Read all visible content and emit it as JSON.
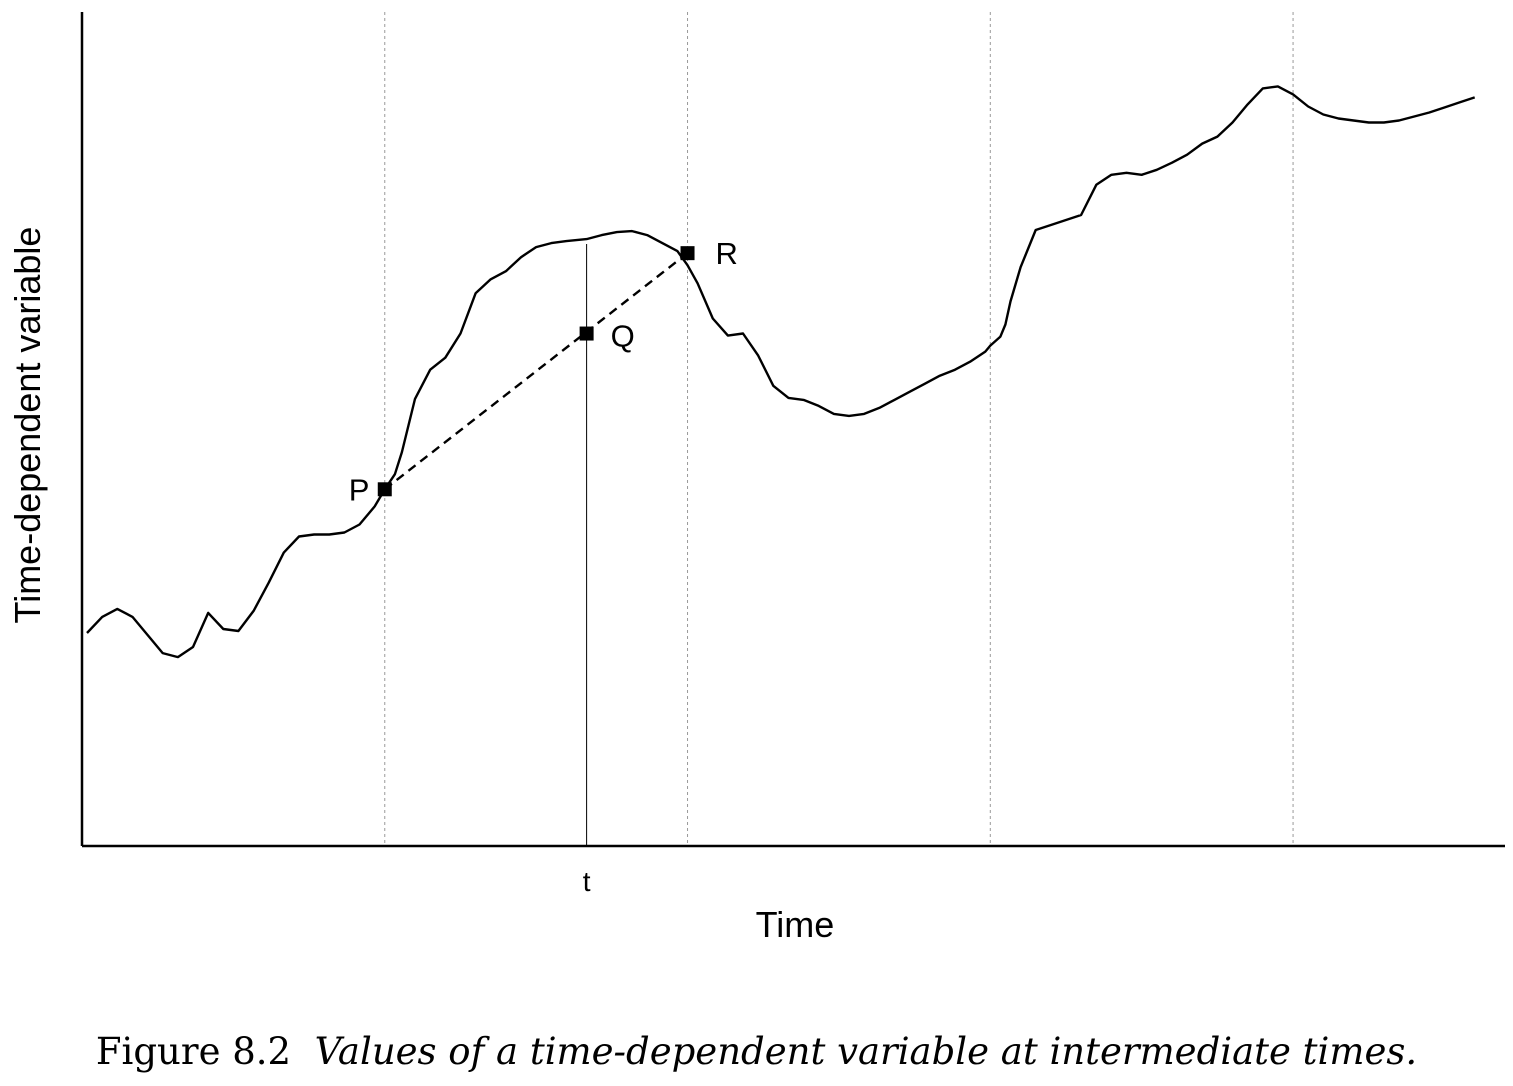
{
  "caption": {
    "figure_label": "Figure 8.2",
    "text": "Values of a time-dependent variable at intermediate times."
  },
  "chart_data": {
    "type": "line",
    "xlabel": "Time",
    "ylabel": "Time-dependent variable",
    "xlim": [
      0,
      14.1
    ],
    "ylim": [
      0,
      8.3
    ],
    "x_ticks": [
      {
        "x": 5.0,
        "label": "t"
      }
    ],
    "grid": {
      "vertical_dotted_at": [
        3.0,
        6.0,
        9.0,
        12.0
      ],
      "horizontal": false
    },
    "series": [
      {
        "values_x": [
          0.05,
          0.2,
          0.35,
          0.5,
          0.65,
          0.8,
          0.95,
          1.1,
          1.25,
          1.4,
          1.55,
          1.7,
          1.85,
          2.0,
          2.15,
          2.3,
          2.45,
          2.6,
          2.75,
          2.9,
          3.0,
          3.1,
          3.17,
          3.3,
          3.45,
          3.6,
          3.75,
          3.9,
          4.05,
          4.2,
          4.35,
          4.5,
          4.65,
          4.8,
          5.0,
          5.15,
          5.3,
          5.45,
          5.6,
          5.75,
          5.9,
          6.0,
          6.1,
          6.25,
          6.4,
          6.55,
          6.7,
          6.85,
          7.0,
          7.15,
          7.3,
          7.45,
          7.6,
          7.75,
          7.9,
          8.05,
          8.2,
          8.35,
          8.5,
          8.65,
          8.8,
          8.95,
          9.0,
          9.1,
          9.15,
          9.2,
          9.3,
          9.45,
          9.6,
          9.75,
          9.9,
          10.05,
          10.2,
          10.35,
          10.5,
          10.65,
          10.8,
          10.95,
          11.1,
          11.25,
          11.4,
          11.55,
          11.7,
          11.85,
          12.0,
          12.15,
          12.3,
          12.45,
          12.6,
          12.75,
          12.9,
          13.05,
          13.2,
          13.35,
          13.5,
          13.65,
          13.8
        ],
        "values_y": [
          2.12,
          2.28,
          2.36,
          2.28,
          2.1,
          1.92,
          1.88,
          1.98,
          2.32,
          2.16,
          2.14,
          2.34,
          2.62,
          2.92,
          3.08,
          3.1,
          3.1,
          3.12,
          3.2,
          3.38,
          3.55,
          3.7,
          3.92,
          4.45,
          4.74,
          4.86,
          5.1,
          5.5,
          5.64,
          5.72,
          5.86,
          5.96,
          6.0,
          6.02,
          6.04,
          6.08,
          6.11,
          6.12,
          6.08,
          6.0,
          5.92,
          5.78,
          5.6,
          5.25,
          5.08,
          5.1,
          4.88,
          4.58,
          4.46,
          4.44,
          4.38,
          4.3,
          4.28,
          4.3,
          4.36,
          4.44,
          4.52,
          4.6,
          4.68,
          4.74,
          4.82,
          4.92,
          4.98,
          5.07,
          5.19,
          5.42,
          5.76,
          6.13,
          6.18,
          6.23,
          6.28,
          6.58,
          6.68,
          6.7,
          6.68,
          6.73,
          6.8,
          6.88,
          6.99,
          7.06,
          7.2,
          7.38,
          7.54,
          7.56,
          7.48,
          7.36,
          7.28,
          7.24,
          7.22,
          7.2,
          7.2,
          7.22,
          7.26,
          7.3,
          7.35,
          7.4,
          7.45
        ]
      }
    ],
    "points": [
      {
        "label": "P",
        "x": 3.0,
        "y": 3.55
      },
      {
        "label": "Q",
        "x": 5.0,
        "y": 5.1
      },
      {
        "label": "R",
        "x": 6.0,
        "y": 5.9
      }
    ],
    "dashed_segment": [
      "P",
      "R"
    ],
    "vertical_line_at_x": 5.0
  }
}
